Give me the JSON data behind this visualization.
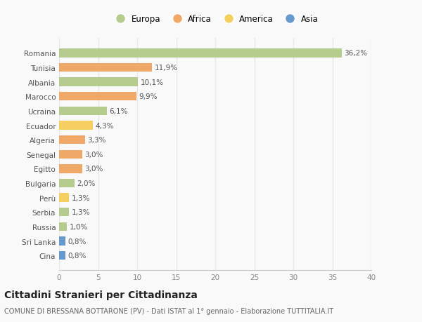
{
  "countries": [
    "Romania",
    "Tunisia",
    "Albania",
    "Marocco",
    "Ucraina",
    "Ecuador",
    "Algeria",
    "Senegal",
    "Egitto",
    "Bulgaria",
    "Perù",
    "Serbia",
    "Russia",
    "Sri Lanka",
    "Cina"
  ],
  "values": [
    36.2,
    11.9,
    10.1,
    9.9,
    6.1,
    4.3,
    3.3,
    3.0,
    3.0,
    2.0,
    1.3,
    1.3,
    1.0,
    0.8,
    0.8
  ],
  "labels": [
    "36,2%",
    "11,9%",
    "10,1%",
    "9,9%",
    "6,1%",
    "4,3%",
    "3,3%",
    "3,0%",
    "3,0%",
    "2,0%",
    "1,3%",
    "1,3%",
    "1,0%",
    "0,8%",
    "0,8%"
  ],
  "continents": [
    "Europa",
    "Africa",
    "Europa",
    "Africa",
    "Europa",
    "America",
    "Africa",
    "Africa",
    "Africa",
    "Europa",
    "America",
    "Europa",
    "Europa",
    "Asia",
    "Asia"
  ],
  "colors": {
    "Europa": "#b5cc8e",
    "Africa": "#f0a868",
    "America": "#f5d060",
    "Asia": "#6699cc"
  },
  "title": "Cittadini Stranieri per Cittadinanza",
  "subtitle": "COMUNE DI BRESSANA BOTTARONE (PV) - Dati ISTAT al 1° gennaio - Elaborazione TUTTITALIA.IT",
  "xlim": [
    0,
    40
  ],
  "xticks": [
    0,
    5,
    10,
    15,
    20,
    25,
    30,
    35,
    40
  ],
  "background_color": "#f9f9f9",
  "grid_color": "#e8e8e8",
  "bar_height": 0.6,
  "label_fontsize": 7.5,
  "tick_fontsize": 7.5,
  "title_fontsize": 10,
  "subtitle_fontsize": 7
}
